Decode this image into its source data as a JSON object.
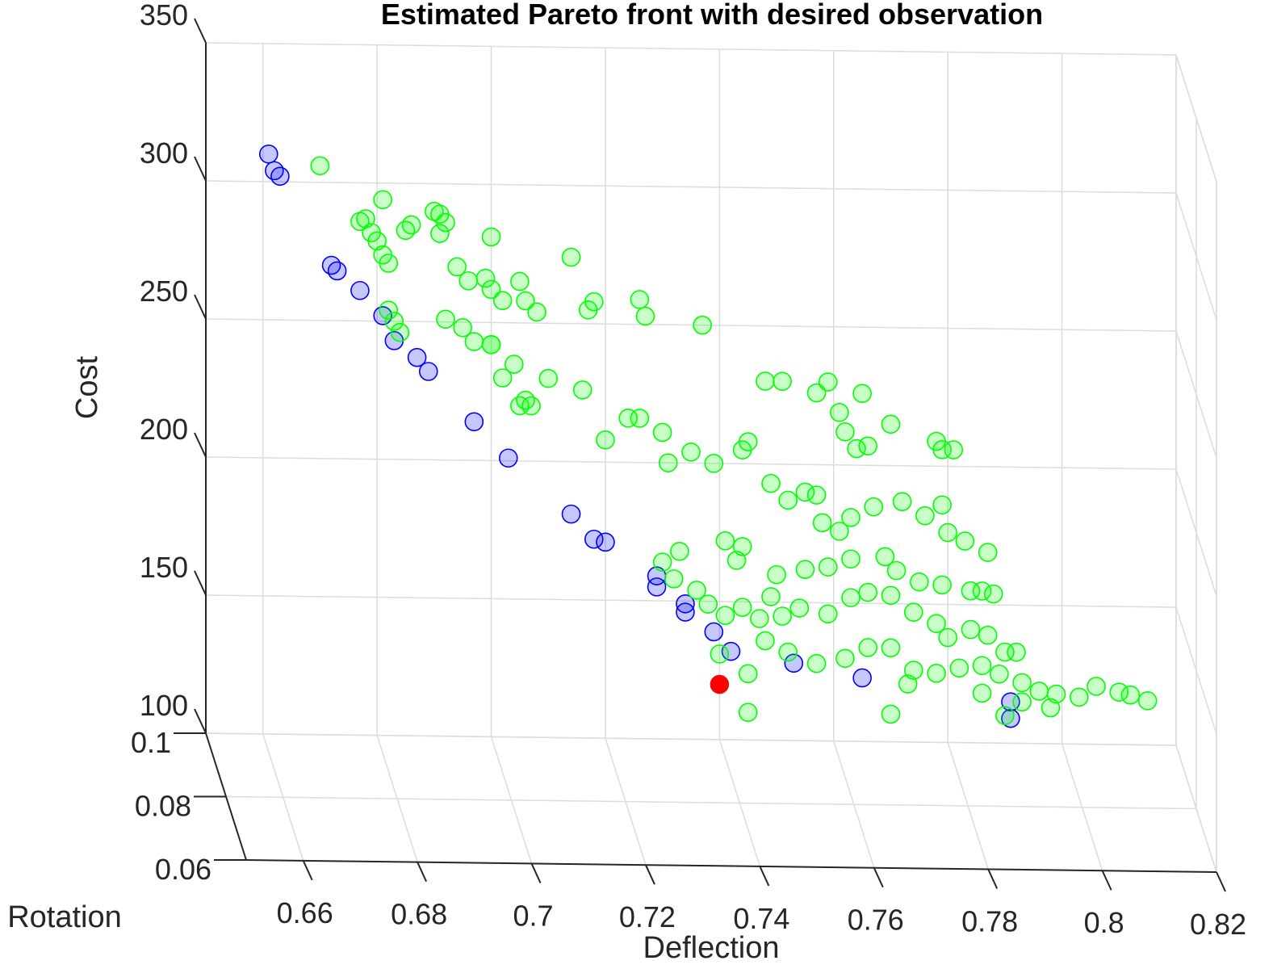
{
  "chart_data": {
    "type": "scatter",
    "view": "3d",
    "title": "Estimated Pareto front with desired observation",
    "xlabel": "Deflection",
    "ylabel": "Rotation",
    "zlabel": "Cost",
    "xlim": [
      0.65,
      0.82
    ],
    "ylim": [
      0.06,
      0.1
    ],
    "zlim": [
      100,
      350
    ],
    "x_ticks": [
      "0.66",
      "0.68",
      "0.7",
      "0.72",
      "0.74",
      "0.76",
      "0.78",
      "0.8",
      "0.82"
    ],
    "y_ticks": [
      "0.06",
      "0.08",
      "0.1"
    ],
    "z_ticks": [
      "100",
      "150",
      "200",
      "250",
      "300",
      "350"
    ],
    "grid": true,
    "colors": {
      "pareto": "#0000ff",
      "estimated": "#00ff00",
      "desired": "#ff0000"
    },
    "series": [
      {
        "role": "pareto",
        "points": [
          [
            0.661,
            0.1,
            310
          ],
          [
            0.662,
            0.1,
            304
          ],
          [
            0.663,
            0.1,
            302
          ],
          [
            0.672,
            0.1,
            270
          ],
          [
            0.673,
            0.1,
            268
          ],
          [
            0.677,
            0.1,
            261
          ],
          [
            0.681,
            0.1,
            252
          ],
          [
            0.683,
            0.1,
            243
          ],
          [
            0.687,
            0.1,
            237
          ],
          [
            0.689,
            0.1,
            232
          ],
          [
            0.697,
            0.1,
            214
          ],
          [
            0.703,
            0.1,
            201
          ],
          [
            0.714,
            0.1,
            181
          ],
          [
            0.718,
            0.1,
            172
          ],
          [
            0.72,
            0.1,
            171
          ],
          [
            0.729,
            0.1,
            159
          ],
          [
            0.729,
            0.1,
            155
          ],
          [
            0.734,
            0.1,
            149
          ],
          [
            0.734,
            0.1,
            146
          ],
          [
            0.739,
            0.1,
            139
          ],
          [
            0.742,
            0.1,
            132
          ],
          [
            0.753,
            0.1,
            128
          ],
          [
            0.765,
            0.1,
            123
          ],
          [
            0.791,
            0.1,
            115
          ],
          [
            0.791,
            0.1,
            109
          ]
        ]
      },
      {
        "role": "estimated",
        "points": [
          [
            0.67,
            0.1,
            306
          ],
          [
            0.681,
            0.1,
            294
          ],
          [
            0.69,
            0.1,
            290
          ],
          [
            0.691,
            0.1,
            289
          ],
          [
            0.692,
            0.1,
            286
          ],
          [
            0.677,
            0.1,
            286
          ],
          [
            0.678,
            0.1,
            287
          ],
          [
            0.679,
            0.1,
            282
          ],
          [
            0.68,
            0.1,
            279
          ],
          [
            0.681,
            0.1,
            274
          ],
          [
            0.682,
            0.1,
            271
          ],
          [
            0.685,
            0.1,
            283
          ],
          [
            0.686,
            0.1,
            285
          ],
          [
            0.691,
            0.1,
            282
          ],
          [
            0.694,
            0.1,
            270
          ],
          [
            0.696,
            0.1,
            265
          ],
          [
            0.7,
            0.1,
            281
          ],
          [
            0.699,
            0.1,
            266
          ],
          [
            0.7,
            0.1,
            262
          ],
          [
            0.702,
            0.1,
            258
          ],
          [
            0.705,
            0.1,
            265
          ],
          [
            0.706,
            0.1,
            258
          ],
          [
            0.708,
            0.1,
            254
          ],
          [
            0.714,
            0.1,
            274
          ],
          [
            0.718,
            0.1,
            258
          ],
          [
            0.717,
            0.1,
            255
          ],
          [
            0.726,
            0.1,
            259
          ],
          [
            0.727,
            0.1,
            253
          ],
          [
            0.737,
            0.1,
            250
          ],
          [
            0.682,
            0.1,
            254
          ],
          [
            0.683,
            0.1,
            250
          ],
          [
            0.684,
            0.1,
            246
          ],
          [
            0.692,
            0.1,
            251
          ],
          [
            0.695,
            0.1,
            248
          ],
          [
            0.697,
            0.1,
            243
          ],
          [
            0.7,
            0.1,
            242
          ],
          [
            0.7,
            0.1,
            242
          ],
          [
            0.702,
            0.1,
            230
          ],
          [
            0.704,
            0.1,
            235
          ],
          [
            0.705,
            0.1,
            220
          ],
          [
            0.706,
            0.1,
            222
          ],
          [
            0.707,
            0.1,
            220
          ],
          [
            0.71,
            0.1,
            230
          ],
          [
            0.716,
            0.1,
            226
          ],
          [
            0.72,
            0.1,
            208
          ],
          [
            0.724,
            0.1,
            216
          ],
          [
            0.726,
            0.1,
            216
          ],
          [
            0.73,
            0.1,
            211
          ],
          [
            0.731,
            0.1,
            200
          ],
          [
            0.735,
            0.1,
            204
          ],
          [
            0.739,
            0.1,
            200
          ],
          [
            0.744,
            0.1,
            205
          ],
          [
            0.745,
            0.1,
            208
          ],
          [
            0.748,
            0.1,
            230
          ],
          [
            0.751,
            0.1,
            230
          ],
          [
            0.757,
            0.1,
            226
          ],
          [
            0.759,
            0.1,
            230
          ],
          [
            0.761,
            0.1,
            219
          ],
          [
            0.765,
            0.1,
            226
          ],
          [
            0.762,
            0.1,
            212
          ],
          [
            0.764,
            0.1,
            206
          ],
          [
            0.766,
            0.1,
            207
          ],
          [
            0.77,
            0.1,
            215
          ],
          [
            0.778,
            0.1,
            209
          ],
          [
            0.779,
            0.1,
            206
          ],
          [
            0.781,
            0.1,
            206
          ],
          [
            0.749,
            0.1,
            193
          ],
          [
            0.752,
            0.1,
            187
          ],
          [
            0.755,
            0.1,
            190
          ],
          [
            0.757,
            0.1,
            189
          ],
          [
            0.758,
            0.1,
            179
          ],
          [
            0.761,
            0.1,
            176
          ],
          [
            0.763,
            0.1,
            181
          ],
          [
            0.767,
            0.1,
            185
          ],
          [
            0.772,
            0.1,
            187
          ],
          [
            0.776,
            0.1,
            182
          ],
          [
            0.779,
            0.1,
            186
          ],
          [
            0.78,
            0.1,
            176
          ],
          [
            0.783,
            0.1,
            173
          ],
          [
            0.787,
            0.1,
            169
          ],
          [
            0.744,
            0.1,
            170
          ],
          [
            0.75,
            0.1,
            160
          ],
          [
            0.755,
            0.1,
            162
          ],
          [
            0.759,
            0.1,
            163
          ],
          [
            0.763,
            0.1,
            166
          ],
          [
            0.769,
            0.1,
            167
          ],
          [
            0.771,
            0.1,
            162
          ],
          [
            0.775,
            0.1,
            158
          ],
          [
            0.779,
            0.1,
            157
          ],
          [
            0.784,
            0.1,
            155
          ],
          [
            0.786,
            0.1,
            155
          ],
          [
            0.788,
            0.1,
            154
          ],
          [
            0.741,
            0.1,
            172
          ],
          [
            0.743,
            0.1,
            165
          ],
          [
            0.733,
            0.1,
            168
          ],
          [
            0.73,
            0.1,
            164
          ],
          [
            0.732,
            0.1,
            158
          ],
          [
            0.736,
            0.1,
            154
          ],
          [
            0.738,
            0.1,
            149
          ],
          [
            0.741,
            0.1,
            145
          ],
          [
            0.744,
            0.1,
            148
          ],
          [
            0.747,
            0.1,
            144
          ],
          [
            0.749,
            0.1,
            152
          ],
          [
            0.751,
            0.1,
            145
          ],
          [
            0.754,
            0.1,
            148
          ],
          [
            0.759,
            0.1,
            146
          ],
          [
            0.763,
            0.1,
            152
          ],
          [
            0.766,
            0.1,
            154
          ],
          [
            0.77,
            0.1,
            153
          ],
          [
            0.774,
            0.1,
            147
          ],
          [
            0.778,
            0.1,
            143
          ],
          [
            0.78,
            0.1,
            138
          ],
          [
            0.784,
            0.1,
            141
          ],
          [
            0.787,
            0.1,
            139
          ],
          [
            0.79,
            0.1,
            133
          ],
          [
            0.792,
            0.1,
            133
          ],
          [
            0.748,
            0.1,
            136
          ],
          [
            0.752,
            0.1,
            132
          ],
          [
            0.757,
            0.1,
            128
          ],
          [
            0.762,
            0.1,
            130
          ],
          [
            0.766,
            0.1,
            134
          ],
          [
            0.77,
            0.1,
            134
          ],
          [
            0.774,
            0.1,
            126
          ],
          [
            0.778,
            0.1,
            125
          ],
          [
            0.782,
            0.1,
            127
          ],
          [
            0.786,
            0.1,
            128
          ],
          [
            0.789,
            0.1,
            125
          ],
          [
            0.793,
            0.1,
            122
          ],
          [
            0.796,
            0.1,
            119
          ],
          [
            0.799,
            0.1,
            118
          ],
          [
            0.803,
            0.1,
            117
          ],
          [
            0.806,
            0.1,
            121
          ],
          [
            0.81,
            0.1,
            119
          ],
          [
            0.812,
            0.1,
            118
          ],
          [
            0.815,
            0.1,
            116
          ],
          [
            0.74,
            0.1,
            131
          ],
          [
            0.745,
            0.1,
            124
          ],
          [
            0.773,
            0.1,
            121
          ],
          [
            0.786,
            0.1,
            118
          ],
          [
            0.793,
            0.1,
            115
          ],
          [
            0.798,
            0.1,
            113
          ],
          [
            0.745,
            0.1,
            110
          ],
          [
            0.77,
            0.1,
            110
          ],
          [
            0.79,
            0.1,
            110
          ]
        ]
      },
      {
        "role": "desired",
        "points": [
          [
            0.74,
            0.1,
            120
          ]
        ]
      }
    ]
  }
}
